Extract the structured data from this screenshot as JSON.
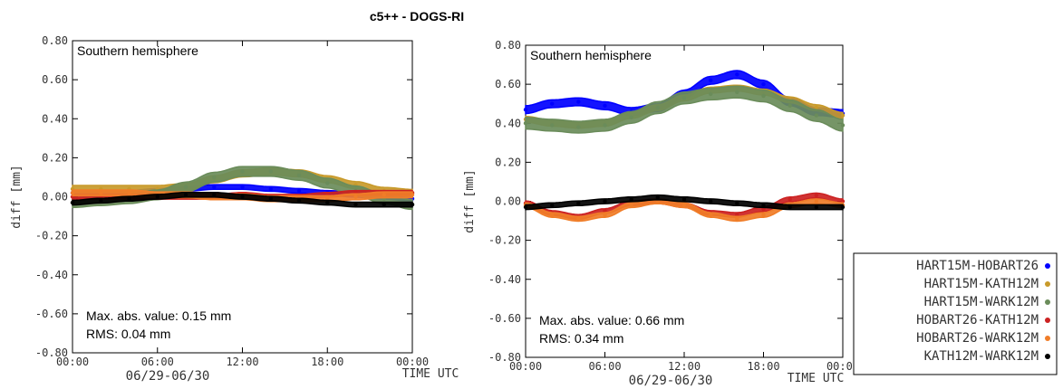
{
  "figure": {
    "title": "c5++ - DOGS-RI"
  },
  "chart_data": [
    {
      "type": "line",
      "panel_title": "Southern hemisphere",
      "ylabel": "diff [mm]",
      "xlabel": "TIME UTC",
      "date_label": "06/29-06/30",
      "ylim": [
        -0.8,
        0.8
      ],
      "yticks": [
        "0.80",
        "0.60",
        "0.40",
        "0.20",
        "0.00",
        "-0.20",
        "-0.40",
        "-0.60",
        "-0.80"
      ],
      "xticks": [
        "00:00",
        "06:00",
        "12:00",
        "18:00",
        "00:00"
      ],
      "x": [
        0,
        2,
        4,
        6,
        8,
        10,
        12,
        14,
        16,
        18,
        20,
        22,
        24
      ],
      "stats": {
        "max_abs": "Max. abs. value: 0.15 mm",
        "rms": "RMS: 0.04 mm"
      },
      "series": [
        {
          "name": "HART15M-HOBART26",
          "color": "#0000ff",
          "band": 0.012,
          "values": [
            0.02,
            0.02,
            0.02,
            0.03,
            0.04,
            0.05,
            0.05,
            0.04,
            0.03,
            0.02,
            0.01,
            0.0,
            -0.01
          ]
        },
        {
          "name": "HART15M-KATH12M",
          "color": "#c89a2a",
          "band": 0.018,
          "values": [
            0.04,
            0.04,
            0.04,
            0.04,
            0.05,
            0.09,
            0.12,
            0.13,
            0.12,
            0.09,
            0.06,
            0.03,
            0.02
          ]
        },
        {
          "name": "HART15M-WARK12M",
          "color": "#6a8c5a",
          "band": 0.025,
          "values": [
            -0.03,
            -0.02,
            -0.01,
            0.01,
            0.05,
            0.1,
            0.13,
            0.13,
            0.11,
            0.07,
            0.03,
            -0.01,
            -0.04
          ]
        },
        {
          "name": "HOBART26-KATH12M",
          "color": "#cc2222",
          "band": 0.012,
          "values": [
            0.0,
            0.0,
            0.0,
            0.0,
            0.0,
            0.0,
            0.01,
            0.0,
            0.0,
            0.01,
            0.02,
            0.02,
            0.02
          ]
        },
        {
          "name": "HOBART26-WARK12M",
          "color": "#f07d28",
          "band": 0.015,
          "values": [
            0.02,
            0.02,
            0.02,
            0.01,
            0.01,
            0.0,
            0.0,
            -0.01,
            -0.01,
            -0.01,
            0.0,
            0.01,
            0.01
          ]
        },
        {
          "name": "KATH12M-WARK12M",
          "color": "#000000",
          "band": 0.012,
          "values": [
            -0.03,
            -0.02,
            -0.01,
            0.0,
            0.01,
            0.01,
            0.0,
            -0.01,
            -0.02,
            -0.03,
            -0.04,
            -0.04,
            -0.04
          ]
        }
      ]
    },
    {
      "type": "line",
      "panel_title": "Southern hemisphere",
      "ylabel": "diff [mm]",
      "xlabel": "TIME UTC",
      "date_label": "06/29-06/30",
      "ylim": [
        -0.8,
        0.8
      ],
      "yticks": [
        "0.80",
        "0.60",
        "0.40",
        "0.20",
        "0.00",
        "-0.20",
        "-0.40",
        "-0.60",
        "-0.80"
      ],
      "xticks": [
        "00:00",
        "06:00",
        "12:00",
        "18:00",
        "00:00"
      ],
      "x": [
        0,
        2,
        4,
        6,
        8,
        10,
        12,
        14,
        16,
        18,
        20,
        22,
        24
      ],
      "stats": {
        "max_abs": "Max. abs. value: 0.66 mm",
        "rms": "RMS: 0.34 mm"
      },
      "series": [
        {
          "name": "HART15M-HOBART26",
          "color": "#0000ff",
          "band": 0.02,
          "values": [
            0.47,
            0.5,
            0.51,
            0.49,
            0.46,
            0.48,
            0.55,
            0.62,
            0.65,
            0.6,
            0.51,
            0.46,
            0.45
          ]
        },
        {
          "name": "HART15M-KATH12M",
          "color": "#c89a2a",
          "band": 0.015,
          "values": [
            0.42,
            0.4,
            0.39,
            0.4,
            0.44,
            0.48,
            0.53,
            0.57,
            0.58,
            0.56,
            0.52,
            0.48,
            0.44
          ]
        },
        {
          "name": "HART15M-WARK12M",
          "color": "#6a8c5a",
          "band": 0.03,
          "values": [
            0.4,
            0.39,
            0.38,
            0.39,
            0.43,
            0.48,
            0.53,
            0.55,
            0.56,
            0.54,
            0.49,
            0.44,
            0.39
          ]
        },
        {
          "name": "HOBART26-KATH12M",
          "color": "#cc2222",
          "band": 0.012,
          "values": [
            -0.01,
            -0.06,
            -0.08,
            -0.05,
            -0.01,
            0.0,
            -0.02,
            -0.06,
            -0.07,
            -0.04,
            0.01,
            0.03,
            0.0
          ]
        },
        {
          "name": "HOBART26-WARK12M",
          "color": "#f07d28",
          "band": 0.012,
          "values": [
            -0.02,
            -0.07,
            -0.09,
            -0.07,
            -0.02,
            0.0,
            -0.02,
            -0.07,
            -0.09,
            -0.07,
            -0.02,
            0.0,
            -0.02
          ]
        },
        {
          "name": "KATH12M-WARK12M",
          "color": "#000000",
          "band": 0.012,
          "values": [
            -0.03,
            -0.02,
            -0.01,
            0.0,
            0.01,
            0.02,
            0.01,
            0.0,
            -0.01,
            -0.02,
            -0.03,
            -0.03,
            -0.03
          ]
        }
      ]
    }
  ]
}
